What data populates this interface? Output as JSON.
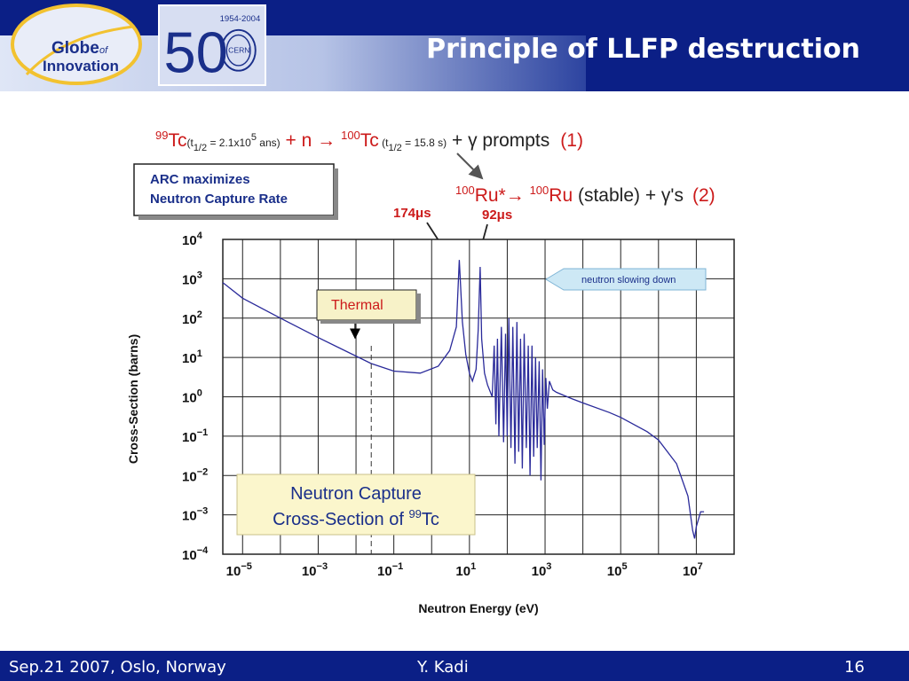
{
  "slide": {
    "title": "Principle of LLFP destruction",
    "footer_left": "Sep.21 2007, Oslo, Norway",
    "footer_center": "Y. Kadi",
    "footer_right": "16",
    "logo_globe_line1": "Globe",
    "logo_globe_of": "of",
    "logo_globe_line2": "Innovation",
    "logo_cern_years": "1954-2004",
    "logo_cern_50": "50",
    "logo_cern_name": "CERN"
  },
  "reactions": {
    "r1_iso": "99",
    "r1_el": "Tc",
    "r1_half_open": "(t",
    "r1_half_sub": "1/2",
    "r1_half_eq": " = 2.1x10",
    "r1_half_exp": "5",
    "r1_half_unit": " ans)",
    "r1_plus_n": " + n ",
    "r1_arrow": "→",
    "r1_prod_iso": "100",
    "r1_prod_el": "Tc",
    "r1_prod_half_open": " (t",
    "r1_prod_half_sub": "1/2",
    "r1_prod_half_rest": " = 15.8 s)",
    "r1_rest": " + γ prompts",
    "r1_num": "(1)",
    "r2_iso": "100",
    "r2_el": "Ru*",
    "r2_arrow": "→ ",
    "r2_prod_iso": "100",
    "r2_prod_el": "Ru",
    "r2_rest": " (stable) + γ's",
    "r2_num": "(2)"
  },
  "arc_box": {
    "line1": "ARC maximizes",
    "line2": "Neutron Capture Rate"
  },
  "peak_labels": {
    "p1": "174μs",
    "p2": "92μs"
  },
  "chart_data": {
    "type": "line",
    "xlabel": "Neutron Energy (eV)",
    "ylabel": "Cross-Section (barns)",
    "x_scale": "log",
    "y_scale": "log",
    "xlim": [
      3e-06,
      100000000.0
    ],
    "ylim": [
      0.0001,
      10000
    ],
    "x_ticks": [
      {
        "value": 1e-05,
        "base": "10",
        "exp": "−5"
      },
      {
        "value": 0.001,
        "base": "10",
        "exp": "−3"
      },
      {
        "value": 0.1,
        "base": "10",
        "exp": "−1"
      },
      {
        "value": 10,
        "base": "10",
        "exp": "1"
      },
      {
        "value": 1000,
        "base": "10",
        "exp": "3"
      },
      {
        "value": 100000.0,
        "base": "10",
        "exp": "5"
      },
      {
        "value": 10000000.0,
        "base": "10",
        "exp": "7"
      }
    ],
    "y_ticks": [
      {
        "value": 10000,
        "base": "10",
        "exp": "4"
      },
      {
        "value": 1000,
        "base": "10",
        "exp": "3"
      },
      {
        "value": 100,
        "base": "10",
        "exp": "2"
      },
      {
        "value": 10,
        "base": "10",
        "exp": "1"
      },
      {
        "value": 1,
        "base": "10",
        "exp": "0"
      },
      {
        "value": 0.1,
        "base": "10",
        "exp": "−1"
      },
      {
        "value": 0.01,
        "base": "10",
        "exp": "−2"
      },
      {
        "value": 0.001,
        "base": "10",
        "exp": "−3"
      },
      {
        "value": 0.0001,
        "base": "10",
        "exp": "−4"
      }
    ],
    "grid": true,
    "series": [
      {
        "color": "#2a2a9a",
        "points": [
          [
            3e-06,
            800
          ],
          [
            1e-05,
            320
          ],
          [
            0.0001,
            100
          ],
          [
            0.001,
            32
          ],
          [
            0.0253,
            7
          ],
          [
            0.1,
            4.5
          ],
          [
            0.5,
            4
          ],
          [
            1.5,
            6
          ],
          [
            3,
            15
          ],
          [
            4.5,
            60
          ],
          [
            5.4,
            3000
          ],
          [
            6.5,
            80
          ],
          [
            8,
            12
          ],
          [
            10,
            4
          ],
          [
            12,
            2.5
          ],
          [
            15,
            5
          ],
          [
            17,
            50
          ],
          [
            19.2,
            2000
          ],
          [
            21,
            30
          ],
          [
            25,
            4
          ],
          [
            30,
            2
          ],
          [
            40,
            1
          ],
          [
            45,
            20
          ],
          [
            50,
            0.2
          ],
          [
            55,
            30
          ],
          [
            60,
            0.1
          ],
          [
            70,
            60
          ],
          [
            80,
            0.07
          ],
          [
            90,
            40
          ],
          [
            100,
            0.1
          ],
          [
            110,
            100
          ],
          [
            125,
            0.05
          ],
          [
            140,
            60
          ],
          [
            160,
            0.02
          ],
          [
            180,
            80
          ],
          [
            200,
            0.04
          ],
          [
            225,
            30
          ],
          [
            250,
            0.015
          ],
          [
            280,
            40
          ],
          [
            320,
            0.05
          ],
          [
            360,
            20
          ],
          [
            400,
            0.01
          ],
          [
            450,
            20
          ],
          [
            500,
            0.03
          ],
          [
            560,
            10
          ],
          [
            620,
            0.05
          ],
          [
            700,
            8
          ],
          [
            780,
            0.0075
          ],
          [
            860,
            5
          ],
          [
            950,
            0.06
          ],
          [
            1050,
            3
          ],
          [
            1150,
            0.5
          ],
          [
            1300,
            2.5
          ],
          [
            1600,
            1.5
          ],
          [
            2000,
            1.3
          ],
          [
            5000,
            0.9
          ],
          [
            10000.0,
            0.7
          ],
          [
            50000.0,
            0.4
          ],
          [
            100000.0,
            0.3
          ],
          [
            500000.0,
            0.13
          ],
          [
            1000000.0,
            0.08
          ],
          [
            3000000.0,
            0.02
          ],
          [
            6000000.0,
            0.003
          ],
          [
            8000000.0,
            0.0004
          ],
          [
            9000000.0,
            0.00025
          ],
          [
            10000000.0,
            0.0005
          ],
          [
            13000000.0,
            0.0012
          ],
          [
            16000000.0,
            0.0012
          ]
        ]
      }
    ],
    "annotations": {
      "thermal_label": "Thermal",
      "thermal_x": 0.0253,
      "slowing_label": "neutron slowing down",
      "title_box_line1": "Neutron Capture",
      "title_box_line2_pre": "Cross-Section of ",
      "title_box_iso": "99",
      "title_box_el": "Tc"
    }
  },
  "colors": {
    "header_bg": "#0b1f86",
    "reaction_red": "#cc1a1a",
    "curve": "#2a2a9a",
    "thermal_box": "#f7f2c8",
    "title_box": "#fbf6cc",
    "arrow_box": "#cde8f5"
  }
}
